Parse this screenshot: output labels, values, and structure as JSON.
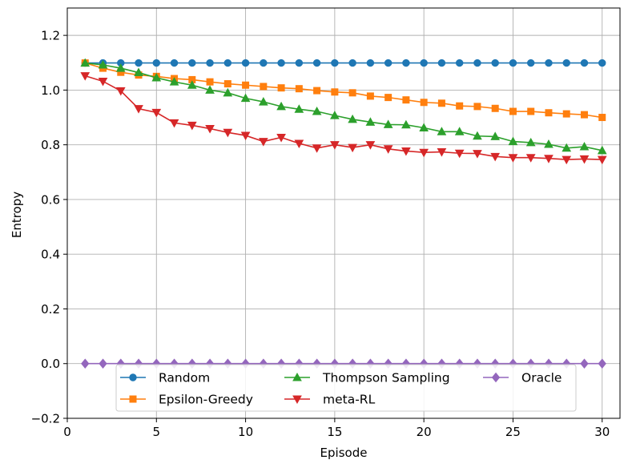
{
  "chart_data": {
    "type": "line",
    "title": "",
    "xlabel": "Episode",
    "ylabel": "Entropy",
    "xlim": [
      0,
      31
    ],
    "ylim": [
      -0.2,
      1.3
    ],
    "xticks": [
      0,
      5,
      10,
      15,
      20,
      25,
      30
    ],
    "xtick_labels": [
      "0",
      "5",
      "10",
      "15",
      "20",
      "25",
      "30"
    ],
    "yticks": [
      -0.2,
      0.0,
      0.2,
      0.4,
      0.6,
      0.8,
      1.0,
      1.2
    ],
    "ytick_labels": [
      "−0.2",
      "0.0",
      "0.2",
      "0.4",
      "0.6",
      "0.8",
      "1.0",
      "1.2"
    ],
    "grid": true,
    "legend_position": "lower-center",
    "x": [
      1,
      2,
      3,
      4,
      5,
      6,
      7,
      8,
      9,
      10,
      11,
      12,
      13,
      14,
      15,
      16,
      17,
      18,
      19,
      20,
      21,
      22,
      23,
      24,
      25,
      26,
      27,
      28,
      29,
      30
    ],
    "series": [
      {
        "name": "Random",
        "color": "#1f77b4",
        "marker": "circle",
        "values": [
          1.099,
          1.099,
          1.099,
          1.099,
          1.099,
          1.099,
          1.099,
          1.099,
          1.099,
          1.099,
          1.099,
          1.099,
          1.099,
          1.099,
          1.099,
          1.099,
          1.099,
          1.099,
          1.099,
          1.099,
          1.099,
          1.099,
          1.099,
          1.099,
          1.099,
          1.099,
          1.099,
          1.099,
          1.099,
          1.099
        ]
      },
      {
        "name": "Epsilon-Greedy",
        "color": "#ff7f0e",
        "marker": "square",
        "values": [
          1.099,
          1.08,
          1.065,
          1.055,
          1.05,
          1.042,
          1.038,
          1.03,
          1.023,
          1.018,
          1.013,
          1.008,
          1.005,
          0.998,
          0.993,
          0.99,
          0.978,
          0.973,
          0.964,
          0.955,
          0.952,
          0.942,
          0.94,
          0.933,
          0.922,
          0.922,
          0.917,
          0.913,
          0.91,
          0.9
        ]
      },
      {
        "name": "Thompson Sampling",
        "color": "#2ca02c",
        "marker": "triangle-up",
        "values": [
          1.099,
          1.092,
          1.08,
          1.064,
          1.045,
          1.03,
          1.018,
          1.0,
          0.99,
          0.97,
          0.957,
          0.94,
          0.93,
          0.922,
          0.907,
          0.893,
          0.883,
          0.874,
          0.873,
          0.862,
          0.848,
          0.848,
          0.832,
          0.83,
          0.812,
          0.808,
          0.802,
          0.788,
          0.793,
          0.779
        ]
      },
      {
        "name": "meta-RL",
        "color": "#d62728",
        "marker": "triangle-down",
        "values": [
          1.052,
          1.032,
          0.997,
          0.932,
          0.918,
          0.88,
          0.871,
          0.859,
          0.845,
          0.834,
          0.812,
          0.827,
          0.805,
          0.788,
          0.8,
          0.79,
          0.8,
          0.785,
          0.777,
          0.772,
          0.774,
          0.769,
          0.768,
          0.757,
          0.753,
          0.753,
          0.75,
          0.746,
          0.748,
          0.746
        ]
      },
      {
        "name": "Oracle",
        "color": "#9467bd",
        "marker": "diamond",
        "values": [
          0,
          0,
          0,
          0,
          0,
          0,
          0,
          0,
          0,
          0,
          0,
          0,
          0,
          0,
          0,
          0,
          0,
          0,
          0,
          0,
          0,
          0,
          0,
          0,
          0,
          0,
          0,
          0,
          0,
          0
        ]
      }
    ]
  }
}
